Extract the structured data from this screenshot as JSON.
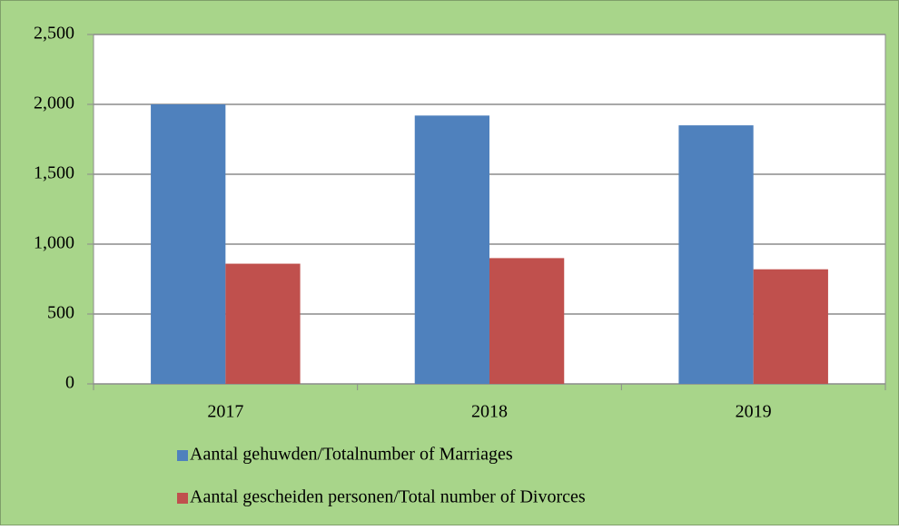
{
  "chart_data": {
    "type": "bar",
    "categories": [
      "2017",
      "2018",
      "2019"
    ],
    "series": [
      {
        "name": "Aantal gehuwden/Totalnumber of Marriages",
        "color": "#4f81bd",
        "values": [
          2000,
          1920,
          1850
        ]
      },
      {
        "name": "Aantal gescheiden personen/Total number of Divorces",
        "color": "#c0504d",
        "values": [
          860,
          900,
          820
        ]
      }
    ],
    "ylim": [
      0,
      2500
    ],
    "yticks": [
      0,
      500,
      {
        "value": 1000,
        "label": "1,000"
      },
      {
        "value": 1500,
        "label": "1,500"
      },
      {
        "value": 2000,
        "label": "2,000"
      },
      {
        "value": 2500,
        "label": "2,500"
      }
    ],
    "grid": true,
    "legend": "bottom"
  }
}
